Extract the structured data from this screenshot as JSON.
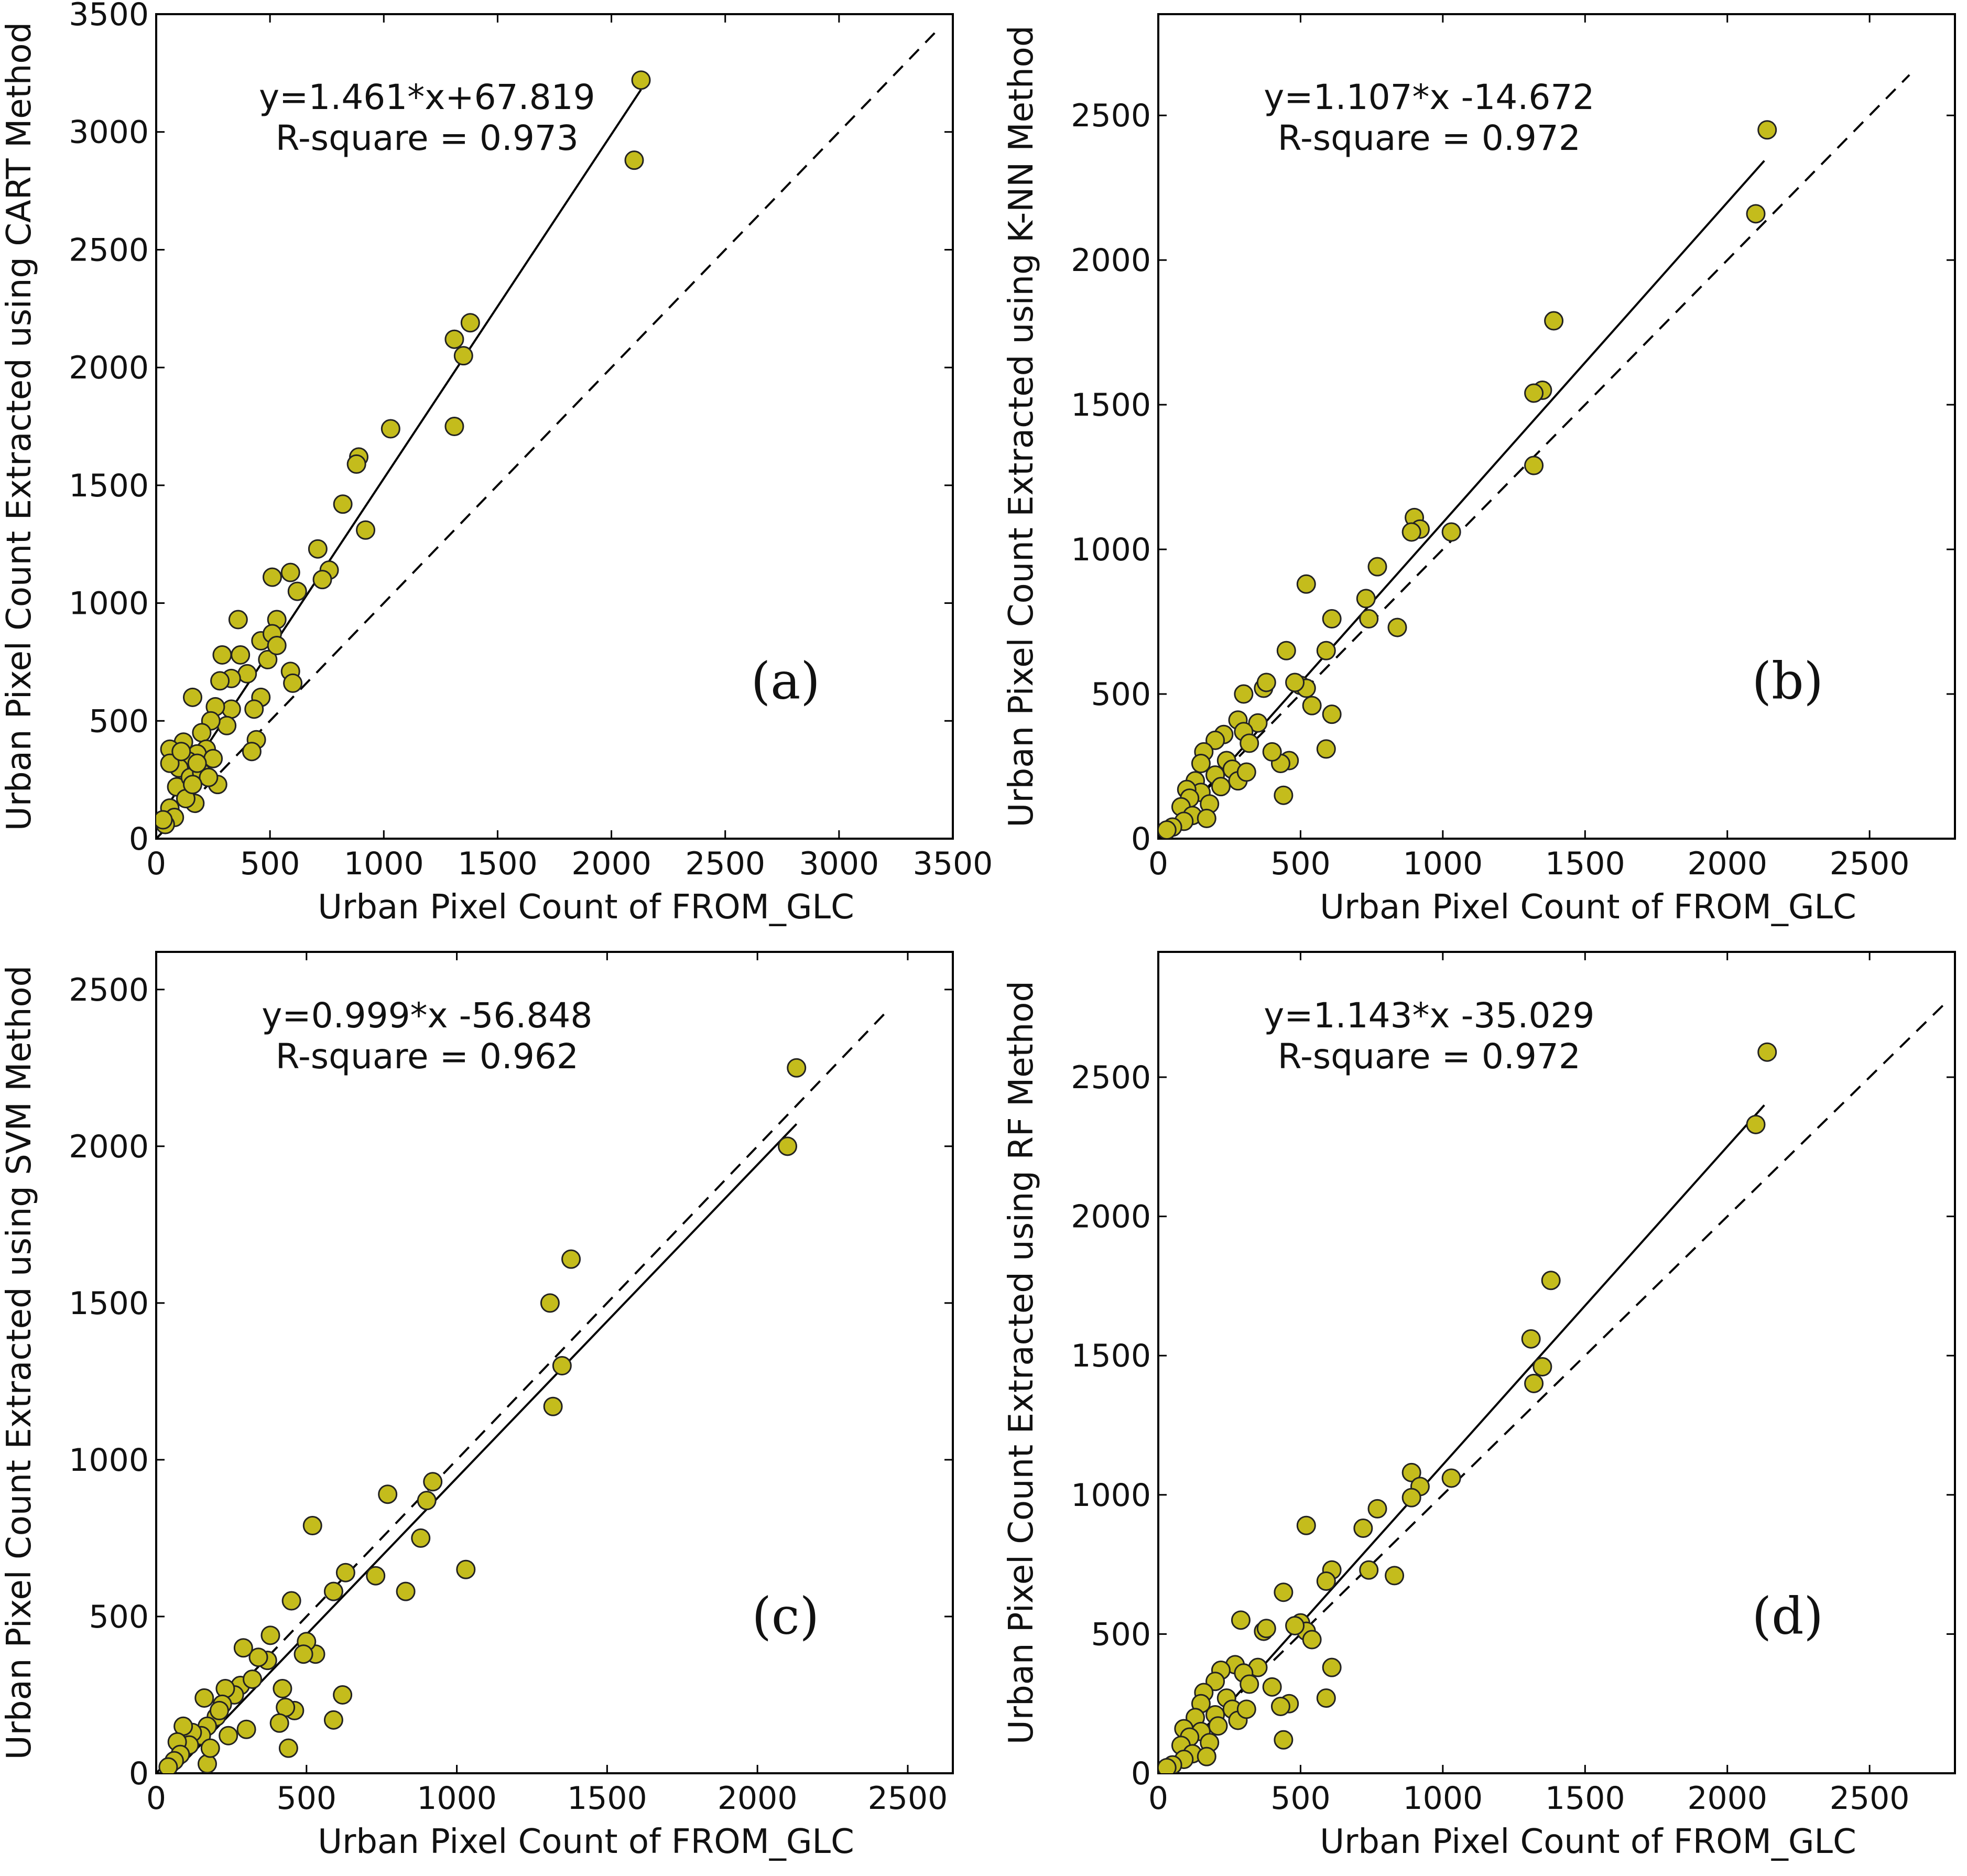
{
  "figure": {
    "colors": {
      "marker_fill": "#c4bc1c",
      "marker_edge": "#222222",
      "line": "#000000"
    }
  },
  "chart_data": [
    {
      "id": "a",
      "type": "scatter",
      "panel_label": "(a)",
      "xlabel": "Urban Pixel Count of FROM_GLC",
      "ylabel": "Urban Pixel Count Extracted using CART Method",
      "xlim": [
        0,
        3500
      ],
      "ylim": [
        0,
        3500
      ],
      "xticks": [
        0,
        500,
        1000,
        1500,
        2000,
        2500,
        3000,
        3500
      ],
      "yticks": [
        0,
        500,
        1000,
        1500,
        2000,
        2500,
        3000,
        3500
      ],
      "equation": "y=1.461*x+67.819",
      "r_square": "R-square = 0.973",
      "fit": {
        "slope": 1.461,
        "intercept": 67.819,
        "x_range": [
          0,
          2130
        ]
      },
      "identity_line": {
        "x_range": [
          0,
          3420
        ]
      },
      "points": [
        [
          2130,
          3220
        ],
        [
          2100,
          2880
        ],
        [
          1380,
          2190
        ],
        [
          1310,
          2120
        ],
        [
          1350,
          2050
        ],
        [
          1310,
          1750
        ],
        [
          1030,
          1740
        ],
        [
          890,
          1620
        ],
        [
          880,
          1590
        ],
        [
          920,
          1310
        ],
        [
          820,
          1420
        ],
        [
          710,
          1230
        ],
        [
          760,
          1140
        ],
        [
          730,
          1100
        ],
        [
          510,
          1110
        ],
        [
          590,
          1130
        ],
        [
          620,
          1050
        ],
        [
          360,
          930
        ],
        [
          530,
          930
        ],
        [
          460,
          840
        ],
        [
          510,
          870
        ],
        [
          490,
          760
        ],
        [
          530,
          820
        ],
        [
          290,
          780
        ],
        [
          370,
          780
        ],
        [
          400,
          700
        ],
        [
          330,
          680
        ],
        [
          280,
          670
        ],
        [
          590,
          710
        ],
        [
          600,
          660
        ],
        [
          460,
          600
        ],
        [
          430,
          550
        ],
        [
          440,
          420
        ],
        [
          420,
          370
        ],
        [
          160,
          600
        ],
        [
          330,
          550
        ],
        [
          310,
          480
        ],
        [
          260,
          560
        ],
        [
          240,
          500
        ],
        [
          200,
          450
        ],
        [
          220,
          380
        ],
        [
          180,
          360
        ],
        [
          250,
          340
        ],
        [
          270,
          230
        ],
        [
          140,
          330
        ],
        [
          120,
          410
        ],
        [
          60,
          380
        ],
        [
          100,
          300
        ],
        [
          60,
          320
        ],
        [
          90,
          220
        ],
        [
          150,
          260
        ],
        [
          170,
          150
        ],
        [
          130,
          170
        ],
        [
          60,
          130
        ],
        [
          80,
          90
        ],
        [
          40,
          60
        ],
        [
          30,
          80
        ],
        [
          200,
          280
        ],
        [
          180,
          320
        ],
        [
          110,
          370
        ],
        [
          230,
          260
        ],
        [
          160,
          230
        ]
      ]
    },
    {
      "id": "b",
      "type": "scatter",
      "panel_label": "(b)",
      "xlabel": "Urban Pixel Count of FROM_GLC",
      "ylabel": "Urban Pixel Count Extracted using K-NN Method",
      "xlim": [
        0,
        2800
      ],
      "ylim": [
        0,
        2850
      ],
      "xticks": [
        0,
        500,
        1000,
        1500,
        2000,
        2500
      ],
      "yticks": [
        0,
        500,
        1000,
        1500,
        2000,
        2500
      ],
      "equation": "y=1.107*x -14.672",
      "r_square": "R-square = 0.972",
      "fit": {
        "slope": 1.107,
        "intercept": -14.672,
        "x_range": [
          0,
          2130
        ]
      },
      "identity_line": {
        "x_range": [
          0,
          2640
        ]
      },
      "points": [
        [
          2140,
          2450
        ],
        [
          2100,
          2160
        ],
        [
          1390,
          1790
        ],
        [
          1350,
          1550
        ],
        [
          1320,
          1540
        ],
        [
          1320,
          1290
        ],
        [
          1030,
          1060
        ],
        [
          900,
          1110
        ],
        [
          920,
          1070
        ],
        [
          890,
          1060
        ],
        [
          770,
          940
        ],
        [
          730,
          830
        ],
        [
          740,
          760
        ],
        [
          840,
          730
        ],
        [
          610,
          760
        ],
        [
          590,
          650
        ],
        [
          520,
          880
        ],
        [
          450,
          650
        ],
        [
          500,
          530
        ],
        [
          520,
          520
        ],
        [
          540,
          460
        ],
        [
          480,
          540
        ],
        [
          610,
          430
        ],
        [
          590,
          310
        ],
        [
          460,
          270
        ],
        [
          430,
          260
        ],
        [
          440,
          150
        ],
        [
          400,
          300
        ],
        [
          300,
          500
        ],
        [
          370,
          520
        ],
        [
          380,
          540
        ],
        [
          350,
          400
        ],
        [
          280,
          410
        ],
        [
          300,
          370
        ],
        [
          320,
          330
        ],
        [
          230,
          360
        ],
        [
          200,
          340
        ],
        [
          240,
          270
        ],
        [
          260,
          240
        ],
        [
          200,
          220
        ],
        [
          160,
          300
        ],
        [
          150,
          260
        ],
        [
          130,
          200
        ],
        [
          150,
          160
        ],
        [
          100,
          170
        ],
        [
          110,
          140
        ],
        [
          80,
          110
        ],
        [
          120,
          80
        ],
        [
          90,
          60
        ],
        [
          50,
          40
        ],
        [
          30,
          30
        ],
        [
          180,
          120
        ],
        [
          170,
          70
        ],
        [
          220,
          180
        ],
        [
          280,
          200
        ],
        [
          310,
          230
        ]
      ]
    },
    {
      "id": "c",
      "type": "scatter",
      "panel_label": "(c)",
      "xlabel": "Urban Pixel Count of FROM_GLC",
      "ylabel": "Urban Pixel Count Extracted using SVM Method",
      "xlim": [
        0,
        2650
      ],
      "ylim": [
        0,
        2620
      ],
      "xticks": [
        0,
        500,
        1000,
        1500,
        2000,
        2500
      ],
      "yticks": [
        0,
        500,
        1000,
        1500,
        2000,
        2500
      ],
      "equation": "y=0.999*x -56.848",
      "r_square": "R-square = 0.962",
      "fit": {
        "slope": 0.999,
        "intercept": -56.848,
        "x_range": [
          0,
          2130
        ]
      },
      "identity_line": {
        "x_range": [
          0,
          2430
        ]
      },
      "points": [
        [
          2130,
          2250
        ],
        [
          2100,
          2000
        ],
        [
          1380,
          1640
        ],
        [
          1310,
          1500
        ],
        [
          1350,
          1300
        ],
        [
          1320,
          1170
        ],
        [
          1030,
          650
        ],
        [
          920,
          930
        ],
        [
          900,
          870
        ],
        [
          880,
          750
        ],
        [
          770,
          890
        ],
        [
          830,
          580
        ],
        [
          730,
          630
        ],
        [
          630,
          640
        ],
        [
          590,
          580
        ],
        [
          590,
          170
        ],
        [
          620,
          250
        ],
        [
          520,
          790
        ],
        [
          530,
          380
        ],
        [
          500,
          420
        ],
        [
          490,
          380
        ],
        [
          450,
          550
        ],
        [
          460,
          200
        ],
        [
          420,
          270
        ],
        [
          430,
          210
        ],
        [
          410,
          160
        ],
        [
          440,
          80
        ],
        [
          380,
          440
        ],
        [
          370,
          360
        ],
        [
          340,
          370
        ],
        [
          290,
          400
        ],
        [
          280,
          280
        ],
        [
          260,
          250
        ],
        [
          300,
          140
        ],
        [
          230,
          270
        ],
        [
          220,
          220
        ],
        [
          200,
          180
        ],
        [
          160,
          240
        ],
        [
          170,
          150
        ],
        [
          150,
          120
        ],
        [
          120,
          130
        ],
        [
          110,
          90
        ],
        [
          90,
          150
        ],
        [
          70,
          100
        ],
        [
          80,
          60
        ],
        [
          60,
          40
        ],
        [
          40,
          20
        ],
        [
          170,
          30
        ],
        [
          180,
          80
        ],
        [
          240,
          120
        ],
        [
          320,
          300
        ],
        [
          210,
          200
        ]
      ]
    },
    {
      "id": "d",
      "type": "scatter",
      "panel_label": "(d)",
      "xlabel": "Urban Pixel Count of FROM_GLC",
      "ylabel": "Urban Pixel Count Extracted using RF Method",
      "xlim": [
        0,
        2800
      ],
      "ylim": [
        0,
        2950
      ],
      "xticks": [
        0,
        500,
        1000,
        1500,
        2000,
        2500
      ],
      "yticks": [
        0,
        500,
        1000,
        1500,
        2000,
        2500
      ],
      "equation": "y=1.143*x -35.029",
      "r_square": "R-square = 0.972",
      "fit": {
        "slope": 1.143,
        "intercept": -35.029,
        "x_range": [
          0,
          2130
        ]
      },
      "identity_line": {
        "x_range": [
          0,
          2780
        ]
      },
      "points": [
        [
          2140,
          2590
        ],
        [
          2100,
          2330
        ],
        [
          1380,
          1770
        ],
        [
          1310,
          1560
        ],
        [
          1350,
          1460
        ],
        [
          1320,
          1400
        ],
        [
          1030,
          1060
        ],
        [
          890,
          1080
        ],
        [
          920,
          1030
        ],
        [
          890,
          990
        ],
        [
          770,
          950
        ],
        [
          720,
          880
        ],
        [
          740,
          730
        ],
        [
          830,
          710
        ],
        [
          610,
          730
        ],
        [
          590,
          690
        ],
        [
          520,
          890
        ],
        [
          440,
          650
        ],
        [
          500,
          540
        ],
        [
          520,
          510
        ],
        [
          540,
          480
        ],
        [
          480,
          530
        ],
        [
          610,
          380
        ],
        [
          590,
          270
        ],
        [
          460,
          250
        ],
        [
          430,
          240
        ],
        [
          440,
          120
        ],
        [
          400,
          310
        ],
        [
          290,
          550
        ],
        [
          370,
          510
        ],
        [
          380,
          520
        ],
        [
          350,
          380
        ],
        [
          270,
          390
        ],
        [
          300,
          360
        ],
        [
          320,
          320
        ],
        [
          220,
          370
        ],
        [
          200,
          330
        ],
        [
          240,
          270
        ],
        [
          260,
          230
        ],
        [
          200,
          210
        ],
        [
          160,
          290
        ],
        [
          150,
          250
        ],
        [
          130,
          200
        ],
        [
          150,
          150
        ],
        [
          90,
          160
        ],
        [
          110,
          130
        ],
        [
          80,
          100
        ],
        [
          120,
          70
        ],
        [
          90,
          50
        ],
        [
          50,
          30
        ],
        [
          30,
          20
        ],
        [
          180,
          110
        ],
        [
          170,
          60
        ],
        [
          210,
          170
        ],
        [
          280,
          190
        ],
        [
          310,
          230
        ]
      ]
    }
  ]
}
